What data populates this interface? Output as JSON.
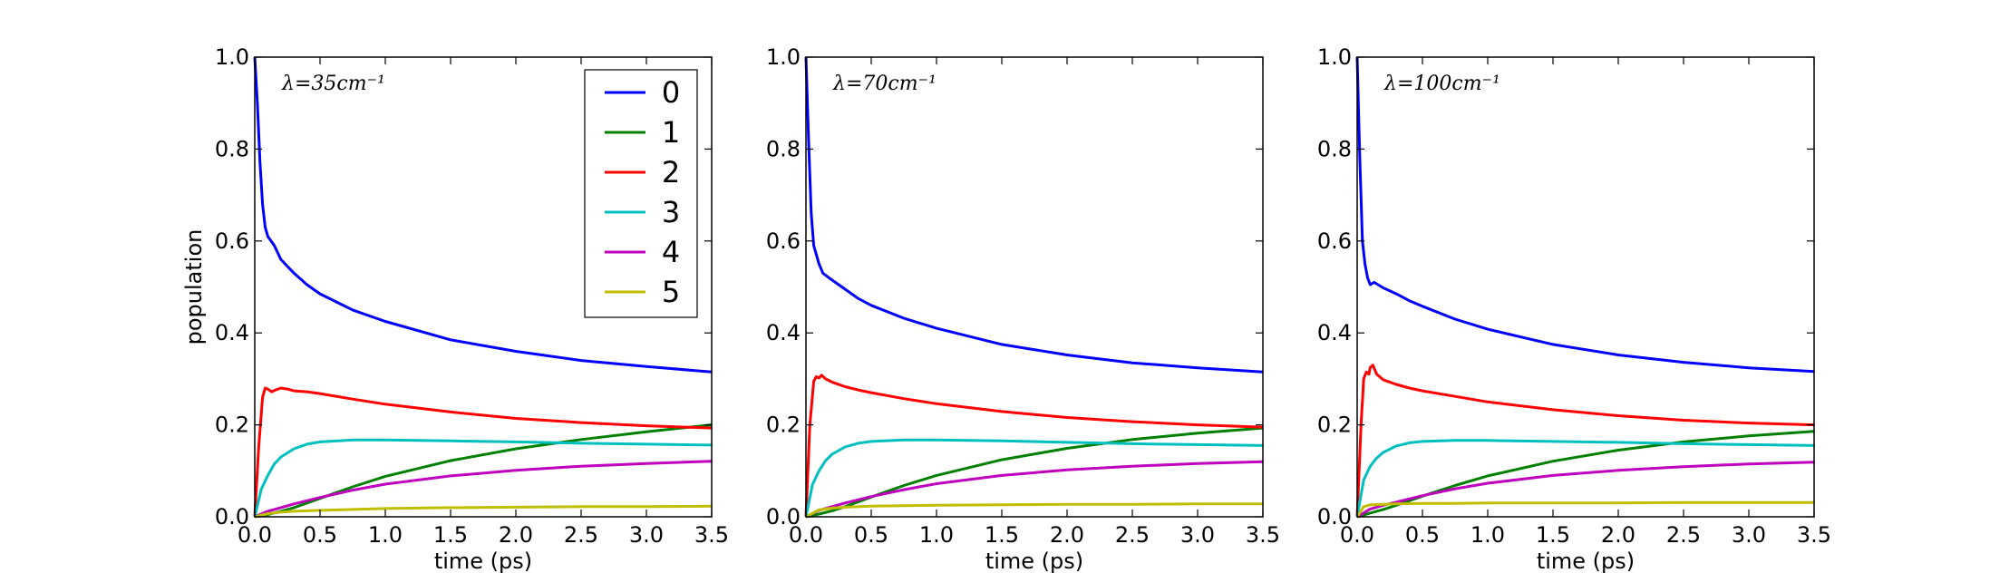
{
  "chart_data": [
    {
      "type": "line",
      "annotation": "λ=35cm⁻¹",
      "xlabel": "time (ps)",
      "ylabel": "population",
      "xlim": [
        0,
        3.5
      ],
      "ylim": [
        0,
        1.0
      ],
      "xticks": [
        "0.0",
        "0.5",
        "1.0",
        "1.5",
        "2.0",
        "2.5",
        "3.0",
        "3.5"
      ],
      "yticks": [
        "0.0",
        "0.2",
        "0.4",
        "0.6",
        "0.8",
        "1.0"
      ],
      "legend": "top-right",
      "series": [
        {
          "name": "0",
          "color": "#0000ff",
          "x": [
            0,
            0.02,
            0.04,
            0.06,
            0.08,
            0.1,
            0.15,
            0.2,
            0.3,
            0.4,
            0.5,
            0.75,
            1.0,
            1.5,
            2.0,
            2.5,
            3.0,
            3.5
          ],
          "y": [
            1.0,
            0.9,
            0.77,
            0.68,
            0.63,
            0.61,
            0.59,
            0.56,
            0.53,
            0.505,
            0.485,
            0.45,
            0.425,
            0.385,
            0.36,
            0.34,
            0.327,
            0.315
          ]
        },
        {
          "name": "1",
          "color": "#008000",
          "x": [
            0,
            0.1,
            0.2,
            0.3,
            0.5,
            0.75,
            1.0,
            1.5,
            2.0,
            2.5,
            3.0,
            3.5
          ],
          "y": [
            0,
            0.005,
            0.012,
            0.02,
            0.04,
            0.065,
            0.088,
            0.122,
            0.148,
            0.168,
            0.185,
            0.2
          ]
        },
        {
          "name": "2",
          "color": "#ff0000",
          "x": [
            0,
            0.03,
            0.06,
            0.08,
            0.1,
            0.13,
            0.16,
            0.2,
            0.25,
            0.3,
            0.4,
            0.5,
            0.75,
            1.0,
            1.5,
            2.0,
            2.5,
            3.0,
            3.5
          ],
          "y": [
            0,
            0.15,
            0.26,
            0.28,
            0.278,
            0.272,
            0.276,
            0.28,
            0.278,
            0.274,
            0.272,
            0.268,
            0.256,
            0.245,
            0.228,
            0.214,
            0.205,
            0.198,
            0.193
          ]
        },
        {
          "name": "3",
          "color": "#00bfbf",
          "x": [
            0,
            0.05,
            0.1,
            0.15,
            0.2,
            0.3,
            0.4,
            0.5,
            0.75,
            1.0,
            1.5,
            2.0,
            2.5,
            3.0,
            3.5
          ],
          "y": [
            0,
            0.06,
            0.09,
            0.115,
            0.13,
            0.148,
            0.158,
            0.163,
            0.167,
            0.167,
            0.165,
            0.163,
            0.16,
            0.158,
            0.156
          ]
        },
        {
          "name": "4",
          "color": "#bf00bf",
          "x": [
            0,
            0.1,
            0.2,
            0.3,
            0.5,
            0.75,
            1.0,
            1.5,
            2.0,
            2.5,
            3.0,
            3.5
          ],
          "y": [
            0,
            0.012,
            0.02,
            0.028,
            0.042,
            0.058,
            0.071,
            0.089,
            0.101,
            0.11,
            0.116,
            0.121
          ]
        },
        {
          "name": "5",
          "color": "#bfbf00",
          "x": [
            0,
            0.1,
            0.2,
            0.3,
            0.5,
            0.75,
            1.0,
            1.5,
            2.0,
            2.5,
            3.0,
            3.5
          ],
          "y": [
            0,
            0.007,
            0.01,
            0.012,
            0.014,
            0.016,
            0.018,
            0.02,
            0.021,
            0.022,
            0.022,
            0.023
          ]
        }
      ]
    },
    {
      "type": "line",
      "annotation": "λ=70cm⁻¹",
      "xlabel": "time (ps)",
      "ylabel": "",
      "xlim": [
        0,
        3.5
      ],
      "ylim": [
        0,
        1.0
      ],
      "xticks": [
        "0.0",
        "0.5",
        "1.0",
        "1.5",
        "2.0",
        "2.5",
        "3.0",
        "3.5"
      ],
      "yticks": [
        "0.0",
        "0.2",
        "0.4",
        "0.6",
        "0.8",
        "1.0"
      ],
      "series": [
        {
          "name": "0",
          "color": "#0000ff",
          "x": [
            0,
            0.02,
            0.04,
            0.06,
            0.08,
            0.1,
            0.13,
            0.2,
            0.3,
            0.4,
            0.5,
            0.75,
            1.0,
            1.5,
            2.0,
            2.5,
            3.0,
            3.5
          ],
          "y": [
            1.0,
            0.82,
            0.66,
            0.59,
            0.57,
            0.55,
            0.53,
            0.515,
            0.495,
            0.475,
            0.46,
            0.432,
            0.41,
            0.375,
            0.352,
            0.335,
            0.324,
            0.315
          ]
        },
        {
          "name": "1",
          "color": "#008000",
          "x": [
            0,
            0.1,
            0.2,
            0.3,
            0.5,
            0.75,
            1.0,
            1.5,
            2.0,
            2.5,
            3.0,
            3.5
          ],
          "y": [
            0,
            0.006,
            0.013,
            0.022,
            0.043,
            0.068,
            0.09,
            0.124,
            0.149,
            0.168,
            0.182,
            0.193
          ]
        },
        {
          "name": "2",
          "color": "#ff0000",
          "x": [
            0,
            0.03,
            0.06,
            0.08,
            0.1,
            0.12,
            0.15,
            0.2,
            0.3,
            0.4,
            0.5,
            0.75,
            1.0,
            1.5,
            2.0,
            2.5,
            3.0,
            3.5
          ],
          "y": [
            0,
            0.2,
            0.295,
            0.305,
            0.302,
            0.308,
            0.3,
            0.293,
            0.283,
            0.276,
            0.27,
            0.257,
            0.246,
            0.229,
            0.216,
            0.207,
            0.2,
            0.195
          ]
        },
        {
          "name": "3",
          "color": "#00bfbf",
          "x": [
            0,
            0.05,
            0.1,
            0.15,
            0.2,
            0.3,
            0.4,
            0.5,
            0.75,
            1.0,
            1.5,
            2.0,
            2.5,
            3.0,
            3.5
          ],
          "y": [
            0,
            0.07,
            0.1,
            0.122,
            0.136,
            0.152,
            0.16,
            0.164,
            0.167,
            0.167,
            0.165,
            0.162,
            0.159,
            0.157,
            0.155
          ]
        },
        {
          "name": "4",
          "color": "#bf00bf",
          "x": [
            0,
            0.1,
            0.2,
            0.3,
            0.5,
            0.75,
            1.0,
            1.5,
            2.0,
            2.5,
            3.0,
            3.5
          ],
          "y": [
            0,
            0.014,
            0.022,
            0.03,
            0.044,
            0.059,
            0.072,
            0.09,
            0.102,
            0.11,
            0.116,
            0.12
          ]
        },
        {
          "name": "5",
          "color": "#bfbf00",
          "x": [
            0,
            0.1,
            0.2,
            0.3,
            0.5,
            0.75,
            1.0,
            1.5,
            2.0,
            2.5,
            3.0,
            3.5
          ],
          "y": [
            0,
            0.015,
            0.019,
            0.021,
            0.023,
            0.024,
            0.025,
            0.026,
            0.027,
            0.027,
            0.028,
            0.028
          ]
        }
      ]
    },
    {
      "type": "line",
      "annotation": "λ=100cm⁻¹",
      "xlabel": "time (ps)",
      "ylabel": "",
      "xlim": [
        0,
        3.5
      ],
      "ylim": [
        0,
        1.0
      ],
      "xticks": [
        "0.0",
        "0.5",
        "1.0",
        "1.5",
        "2.0",
        "2.5",
        "3.0",
        "3.5"
      ],
      "yticks": [
        "0.0",
        "0.2",
        "0.4",
        "0.6",
        "0.8",
        "1.0"
      ],
      "series": [
        {
          "name": "0",
          "color": "#0000ff",
          "x": [
            0,
            0.02,
            0.04,
            0.06,
            0.08,
            0.1,
            0.13,
            0.16,
            0.2,
            0.3,
            0.4,
            0.5,
            0.75,
            1.0,
            1.5,
            2.0,
            2.5,
            3.0,
            3.5
          ],
          "y": [
            1.0,
            0.78,
            0.6,
            0.55,
            0.52,
            0.505,
            0.51,
            0.505,
            0.498,
            0.485,
            0.47,
            0.458,
            0.43,
            0.408,
            0.375,
            0.352,
            0.336,
            0.324,
            0.316
          ]
        },
        {
          "name": "1",
          "color": "#008000",
          "x": [
            0,
            0.1,
            0.2,
            0.3,
            0.5,
            0.75,
            1.0,
            1.5,
            2.0,
            2.5,
            3.0,
            3.5
          ],
          "y": [
            0,
            0.008,
            0.016,
            0.025,
            0.045,
            0.068,
            0.089,
            0.121,
            0.145,
            0.163,
            0.176,
            0.186
          ]
        },
        {
          "name": "2",
          "color": "#ff0000",
          "x": [
            0,
            0.03,
            0.05,
            0.07,
            0.09,
            0.1,
            0.12,
            0.15,
            0.2,
            0.3,
            0.4,
            0.5,
            0.75,
            1.0,
            1.5,
            2.0,
            2.5,
            3.0,
            3.5
          ],
          "y": [
            0,
            0.2,
            0.3,
            0.315,
            0.31,
            0.325,
            0.33,
            0.31,
            0.298,
            0.288,
            0.28,
            0.274,
            0.262,
            0.25,
            0.233,
            0.22,
            0.21,
            0.204,
            0.2
          ]
        },
        {
          "name": "3",
          "color": "#00bfbf",
          "x": [
            0,
            0.05,
            0.1,
            0.15,
            0.2,
            0.3,
            0.4,
            0.5,
            0.75,
            1.0,
            1.5,
            2.0,
            2.5,
            3.0,
            3.5
          ],
          "y": [
            0,
            0.08,
            0.11,
            0.128,
            0.14,
            0.154,
            0.161,
            0.164,
            0.166,
            0.166,
            0.164,
            0.162,
            0.159,
            0.157,
            0.155
          ]
        },
        {
          "name": "4",
          "color": "#bf00bf",
          "x": [
            0,
            0.1,
            0.2,
            0.3,
            0.5,
            0.75,
            1.0,
            1.5,
            2.0,
            2.5,
            3.0,
            3.5
          ],
          "y": [
            0,
            0.017,
            0.025,
            0.032,
            0.046,
            0.061,
            0.073,
            0.09,
            0.101,
            0.109,
            0.115,
            0.119
          ]
        },
        {
          "name": "5",
          "color": "#bfbf00",
          "x": [
            0,
            0.05,
            0.1,
            0.2,
            0.3,
            0.5,
            0.75,
            1.0,
            1.5,
            2.0,
            2.5,
            3.0,
            3.5
          ],
          "y": [
            0,
            0.022,
            0.026,
            0.027,
            0.028,
            0.029,
            0.029,
            0.03,
            0.03,
            0.03,
            0.031,
            0.031,
            0.031
          ]
        }
      ]
    }
  ]
}
